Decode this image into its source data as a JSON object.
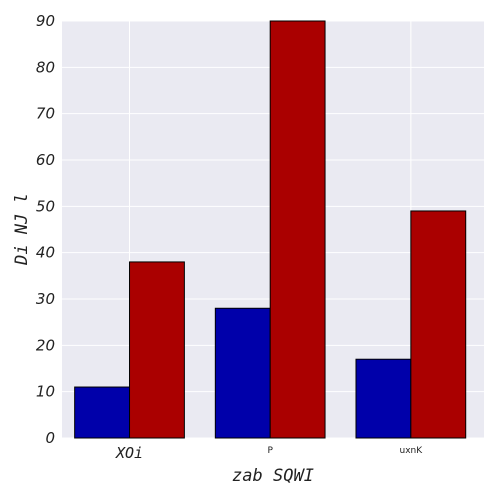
{
  "chart_data": {
    "type": "bar",
    "categories": [
      "XOi",
      "P",
      "uxnK"
    ],
    "series": [
      {
        "values": [
          11,
          28,
          17
        ],
        "color": "#0000aa"
      },
      {
        "values": [
          38,
          90,
          49
        ],
        "color": "#aa0000"
      }
    ],
    "xlabel": "zab SQWI",
    "ylabel": "Di NJ l",
    "ylim": [
      0,
      90
    ],
    "yticks": [
      0,
      10,
      20,
      30,
      40,
      50,
      60,
      70,
      80,
      90
    ],
    "grid": true,
    "background": "#eaeaf2",
    "gridColor": "#ffffff",
    "edgeColor": "#000000"
  }
}
